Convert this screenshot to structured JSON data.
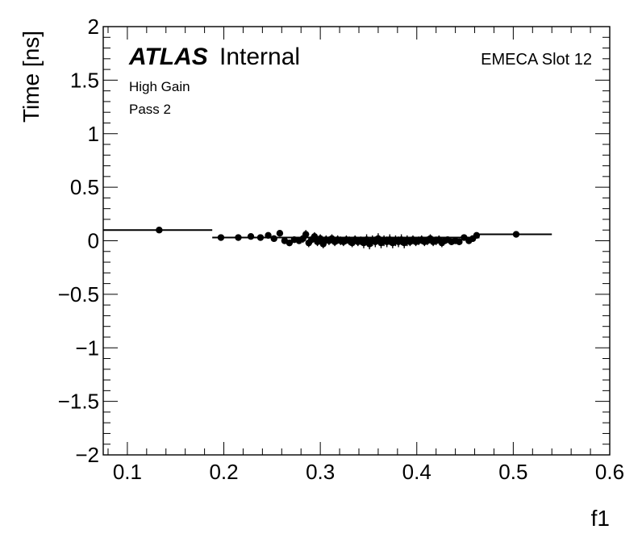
{
  "chart_data": {
    "type": "scatter",
    "xlabel": "f1",
    "ylabel": "Time [ns]",
    "xlim": [
      0.075,
      0.6
    ],
    "ylim": [
      -2,
      2
    ],
    "x_ticks": [
      "0.1",
      "0.2",
      "0.3",
      "0.4",
      "0.5",
      "0.6"
    ],
    "y_ticks": [
      "2",
      "1.5",
      "1",
      "0.5",
      "0",
      "−0.5",
      "−1",
      "−1.5",
      "−2"
    ],
    "grid": false,
    "annotations": {
      "atlas": "ATLAS",
      "internal": "Internal",
      "gain": "High Gain",
      "pass": "Pass 2",
      "slot": "EMECA Slot 12"
    },
    "fit_segments": [
      {
        "x0": 0.075,
        "x1": 0.188,
        "y": 0.1
      },
      {
        "x0": 0.188,
        "x1": 0.465,
        "y": 0.03
      },
      {
        "x0": 0.465,
        "x1": 0.54,
        "y": 0.06
      }
    ],
    "series": [
      {
        "points": [
          {
            "x": 0.133,
            "y": 0.1,
            "err": 0.02
          },
          {
            "x": 0.197,
            "y": 0.03,
            "err": 0.02
          },
          {
            "x": 0.215,
            "y": 0.03,
            "err": 0.02
          },
          {
            "x": 0.228,
            "y": 0.04,
            "err": 0.02
          },
          {
            "x": 0.238,
            "y": 0.03,
            "err": 0.02
          },
          {
            "x": 0.246,
            "y": 0.05,
            "err": 0.02
          },
          {
            "x": 0.252,
            "y": 0.02,
            "err": 0.02
          },
          {
            "x": 0.258,
            "y": 0.07,
            "err": 0.02
          },
          {
            "x": 0.263,
            "y": 0.0,
            "err": 0.03
          },
          {
            "x": 0.268,
            "y": -0.02,
            "err": 0.03
          },
          {
            "x": 0.273,
            "y": 0.01,
            "err": 0.03
          },
          {
            "x": 0.278,
            "y": 0.0,
            "err": 0.03
          },
          {
            "x": 0.282,
            "y": 0.02,
            "err": 0.04
          },
          {
            "x": 0.285,
            "y": 0.06,
            "err": 0.04
          },
          {
            "x": 0.288,
            "y": -0.02,
            "err": 0.04
          },
          {
            "x": 0.291,
            "y": 0.01,
            "err": 0.04
          },
          {
            "x": 0.294,
            "y": 0.04,
            "err": 0.04
          },
          {
            "x": 0.297,
            "y": -0.01,
            "err": 0.04
          },
          {
            "x": 0.3,
            "y": 0.02,
            "err": 0.04
          },
          {
            "x": 0.303,
            "y": -0.03,
            "err": 0.04
          },
          {
            "x": 0.306,
            "y": 0.01,
            "err": 0.04
          },
          {
            "x": 0.309,
            "y": 0.0,
            "err": 0.04
          },
          {
            "x": 0.312,
            "y": 0.02,
            "err": 0.04
          },
          {
            "x": 0.315,
            "y": -0.01,
            "err": 0.04
          },
          {
            "x": 0.318,
            "y": 0.01,
            "err": 0.04
          },
          {
            "x": 0.321,
            "y": 0.0,
            "err": 0.04
          },
          {
            "x": 0.324,
            "y": -0.01,
            "err": 0.04
          },
          {
            "x": 0.327,
            "y": 0.01,
            "err": 0.04
          },
          {
            "x": 0.33,
            "y": 0.0,
            "err": 0.04
          },
          {
            "x": 0.333,
            "y": -0.02,
            "err": 0.04
          },
          {
            "x": 0.336,
            "y": 0.01,
            "err": 0.04
          },
          {
            "x": 0.339,
            "y": -0.01,
            "err": 0.04
          },
          {
            "x": 0.342,
            "y": 0.0,
            "err": 0.04
          },
          {
            "x": 0.345,
            "y": -0.02,
            "err": 0.05
          },
          {
            "x": 0.348,
            "y": 0.01,
            "err": 0.05
          },
          {
            "x": 0.351,
            "y": -0.03,
            "err": 0.05
          },
          {
            "x": 0.354,
            "y": 0.0,
            "err": 0.05
          },
          {
            "x": 0.357,
            "y": -0.01,
            "err": 0.05
          },
          {
            "x": 0.36,
            "y": 0.02,
            "err": 0.05
          },
          {
            "x": 0.363,
            "y": -0.02,
            "err": 0.05
          },
          {
            "x": 0.366,
            "y": 0.0,
            "err": 0.05
          },
          {
            "x": 0.369,
            "y": -0.01,
            "err": 0.05
          },
          {
            "x": 0.372,
            "y": 0.01,
            "err": 0.05
          },
          {
            "x": 0.375,
            "y": -0.02,
            "err": 0.05
          },
          {
            "x": 0.378,
            "y": 0.0,
            "err": 0.05
          },
          {
            "x": 0.381,
            "y": -0.01,
            "err": 0.05
          },
          {
            "x": 0.384,
            "y": 0.01,
            "err": 0.05
          },
          {
            "x": 0.387,
            "y": -0.02,
            "err": 0.05
          },
          {
            "x": 0.39,
            "y": 0.0,
            "err": 0.05
          },
          {
            "x": 0.393,
            "y": -0.01,
            "err": 0.04
          },
          {
            "x": 0.396,
            "y": 0.01,
            "err": 0.04
          },
          {
            "x": 0.399,
            "y": -0.01,
            "err": 0.04
          },
          {
            "x": 0.402,
            "y": 0.0,
            "err": 0.04
          },
          {
            "x": 0.405,
            "y": 0.01,
            "err": 0.04
          },
          {
            "x": 0.408,
            "y": -0.01,
            "err": 0.04
          },
          {
            "x": 0.411,
            "y": 0.0,
            "err": 0.04
          },
          {
            "x": 0.414,
            "y": 0.02,
            "err": 0.04
          },
          {
            "x": 0.417,
            "y": -0.01,
            "err": 0.04
          },
          {
            "x": 0.42,
            "y": 0.0,
            "err": 0.04
          },
          {
            "x": 0.423,
            "y": 0.01,
            "err": 0.04
          },
          {
            "x": 0.426,
            "y": -0.02,
            "err": 0.04
          },
          {
            "x": 0.429,
            "y": 0.0,
            "err": 0.03
          },
          {
            "x": 0.432,
            "y": 0.01,
            "err": 0.03
          },
          {
            "x": 0.436,
            "y": -0.01,
            "err": 0.03
          },
          {
            "x": 0.44,
            "y": 0.0,
            "err": 0.03
          },
          {
            "x": 0.444,
            "y": -0.01,
            "err": 0.03
          },
          {
            "x": 0.449,
            "y": 0.03,
            "err": 0.02
          },
          {
            "x": 0.454,
            "y": 0.0,
            "err": 0.02
          },
          {
            "x": 0.458,
            "y": 0.02,
            "err": 0.02
          },
          {
            "x": 0.462,
            "y": 0.05,
            "err": 0.02
          },
          {
            "x": 0.503,
            "y": 0.06,
            "err": 0.02
          }
        ]
      }
    ]
  }
}
